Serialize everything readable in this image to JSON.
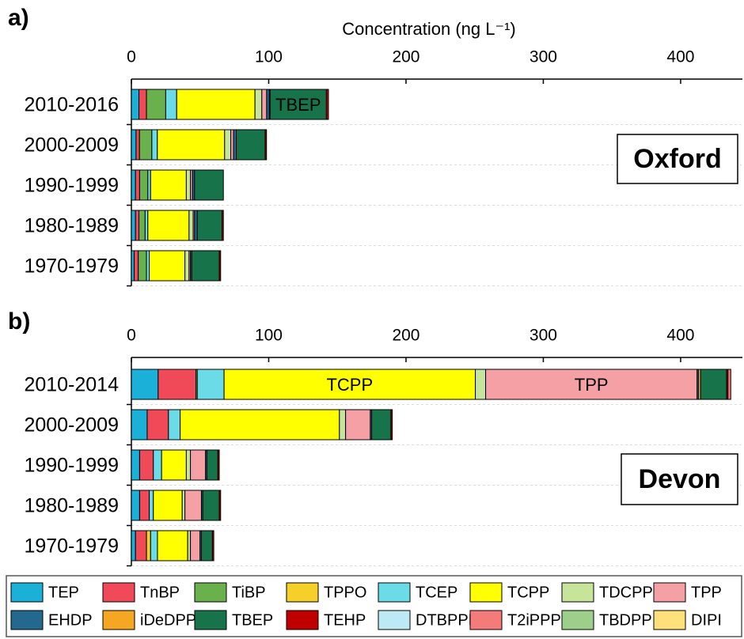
{
  "chart_data": [
    {
      "type": "bar",
      "orientation": "horizontal",
      "stacked": true,
      "panel_label": "a)",
      "location": "Oxford",
      "x_label": "Concentration (ng L⁻¹)",
      "categories": [
        "2010-2016",
        "2000-2009",
        "1990-1999",
        "1980-1989",
        "1970-1979"
      ],
      "xlim": [
        0,
        445
      ],
      "xticks": [
        0,
        100,
        200,
        300,
        400
      ],
      "grid": true,
      "annotations": [
        "TBEP"
      ],
      "series": [
        {
          "name": "TEP",
          "color": "#1ab0d8",
          "values": [
            5.5,
            3.4,
            3,
            3,
            2
          ]
        },
        {
          "name": "TnBP",
          "color": "#f04a58",
          "values": [
            5.5,
            2.5,
            3,
            2.5,
            3
          ]
        },
        {
          "name": "TiBP",
          "color": "#6ab04c",
          "values": [
            14,
            9,
            6,
            4.5,
            6
          ]
        },
        {
          "name": "TPPO",
          "color": "#f5cf2a",
          "values": [
            0,
            0,
            0,
            0,
            0
          ]
        },
        {
          "name": "TCEP",
          "color": "#6cdbe8",
          "values": [
            8,
            4,
            2,
            2,
            2
          ]
        },
        {
          "name": "TCPP",
          "color": "#ffff00",
          "values": [
            57,
            49,
            26,
            30,
            26
          ]
        },
        {
          "name": "TDCPP",
          "color": "#c7e59a",
          "values": [
            5,
            4.5,
            3,
            3,
            3
          ]
        },
        {
          "name": "TPP",
          "color": "#f4a0a4",
          "values": [
            3.5,
            2,
            1.5,
            1,
            1
          ]
        },
        {
          "name": "EHDP",
          "color": "#25688f",
          "values": [
            2,
            2,
            1.5,
            2,
            1
          ]
        },
        {
          "name": "iDeDPP",
          "color": "#f5a623",
          "values": [
            0.5,
            0,
            0,
            0,
            0
          ]
        },
        {
          "name": "TBEP",
          "color": "#17744a",
          "values": [
            41,
            21,
            21,
            18,
            20
          ]
        },
        {
          "name": "TEHP",
          "color": "#c00000",
          "values": [
            1.5,
            1,
            0,
            1,
            1
          ]
        },
        {
          "name": "DTBPPP",
          "color": "#bde9f5",
          "values": [
            0,
            0,
            0,
            0,
            0
          ]
        },
        {
          "name": "T2iPPP",
          "color": "#f57a7a",
          "values": [
            0,
            0,
            0,
            0,
            0
          ]
        },
        {
          "name": "TBDPP",
          "color": "#9ccf8a",
          "values": [
            0,
            0,
            0,
            0,
            0
          ]
        },
        {
          "name": "DIPI",
          "color": "#ffe07a",
          "values": [
            0,
            0,
            0,
            0,
            0
          ]
        }
      ]
    },
    {
      "type": "bar",
      "orientation": "horizontal",
      "stacked": true,
      "panel_label": "b)",
      "location": "Devon",
      "categories": [
        "2010-2014",
        "2000-2009",
        "1990-1999",
        "1980-1989",
        "1970-1979"
      ],
      "xlim": [
        0,
        445
      ],
      "xticks": [
        0,
        100,
        200,
        300,
        400
      ],
      "grid": true,
      "annotations": [
        "TCPP",
        "TPP"
      ],
      "series": [
        {
          "name": "TEP",
          "color": "#1ab0d8",
          "values": [
            19.5,
            11.5,
            6,
            6,
            3
          ]
        },
        {
          "name": "TnBP",
          "color": "#f04a58",
          "values": [
            27.5,
            15.5,
            10,
            7,
            8
          ]
        },
        {
          "name": "TiBP",
          "color": "#6ab04c",
          "values": [
            1,
            0,
            0,
            0,
            0
          ]
        },
        {
          "name": "TPPO",
          "color": "#f5cf2a",
          "values": [
            0,
            0,
            0,
            0,
            3
          ]
        },
        {
          "name": "TCEP",
          "color": "#6cdbe8",
          "values": [
            19.5,
            8.5,
            6,
            3,
            5
          ]
        },
        {
          "name": "TCPP",
          "color": "#ffff00",
          "values": [
            183,
            116,
            18,
            21,
            22
          ]
        },
        {
          "name": "TDCPP",
          "color": "#c7e59a",
          "values": [
            7.5,
            4.5,
            3,
            2,
            2
          ]
        },
        {
          "name": "TPP",
          "color": "#f4a0a4",
          "values": [
            154,
            18,
            11,
            12,
            7
          ]
        },
        {
          "name": "EHDP",
          "color": "#25688f",
          "values": [
            1,
            1,
            1,
            1,
            1
          ]
        },
        {
          "name": "iDeDPP",
          "color": "#f5a623",
          "values": [
            1.5,
            0,
            0,
            0,
            0
          ]
        },
        {
          "name": "TBEP",
          "color": "#17744a",
          "values": [
            19,
            14,
            8,
            12,
            8
          ]
        },
        {
          "name": "TEHP",
          "color": "#c00000",
          "values": [
            1,
            1,
            1,
            1,
            1
          ]
        },
        {
          "name": "DTBPPP",
          "color": "#bde9f5",
          "values": [
            0,
            0,
            0,
            0,
            0
          ]
        },
        {
          "name": "T2iPPP",
          "color": "#f57a7a",
          "values": [
            2,
            0,
            0,
            0,
            0
          ]
        },
        {
          "name": "TBDPP",
          "color": "#9ccf8a",
          "values": [
            0,
            0,
            0,
            0,
            0
          ]
        },
        {
          "name": "DIPI",
          "color": "#ffe07a",
          "values": [
            0,
            0,
            0,
            0,
            0
          ]
        }
      ]
    }
  ]
}
